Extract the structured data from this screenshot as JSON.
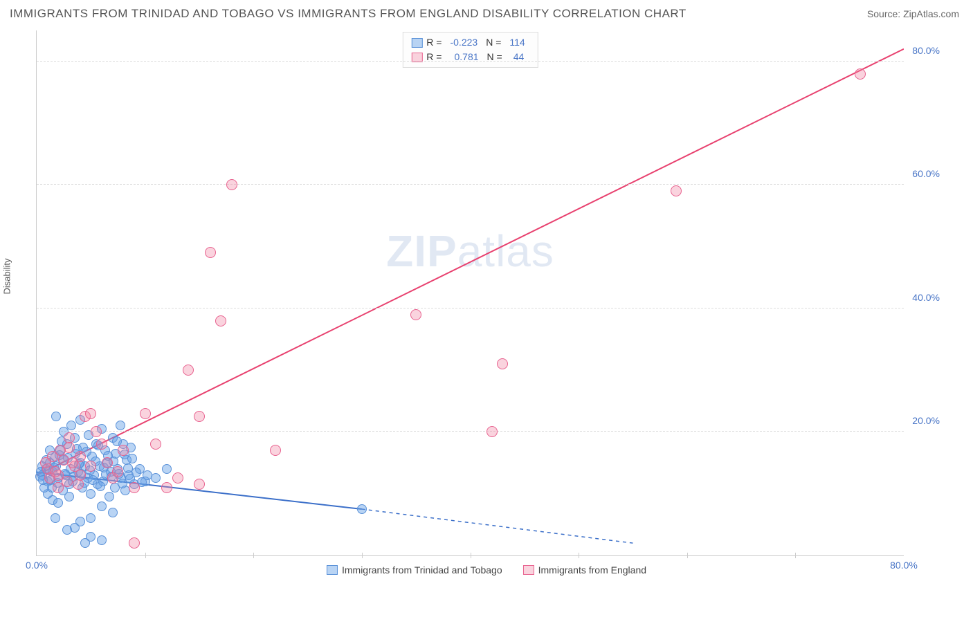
{
  "title": "IMMIGRANTS FROM TRINIDAD AND TOBAGO VS IMMIGRANTS FROM ENGLAND DISABILITY CORRELATION CHART",
  "source": "Source: ZipAtlas.com",
  "ylabel": "Disability",
  "watermark_a": "ZIP",
  "watermark_b": "atlas",
  "chart": {
    "type": "scatter",
    "xlim": [
      0,
      80
    ],
    "ylim": [
      0,
      85
    ],
    "background_color": "#ffffff",
    "grid_color": "#dddddd",
    "xtick_labels": [
      "0.0%",
      "80.0%"
    ],
    "xtick_positions": [
      0,
      80
    ],
    "xtick_minor": [
      10,
      20,
      30,
      40,
      50,
      60,
      70
    ],
    "ytick_labels": [
      "20.0%",
      "40.0%",
      "60.0%",
      "80.0%"
    ],
    "ytick_positions": [
      20,
      40,
      60,
      80
    ],
    "series": [
      {
        "name": "Immigrants from Trinidad and Tobago",
        "color_fill": "rgba(100,160,230,0.45)",
        "color_stroke": "#5a91d8",
        "marker_radius": 7,
        "R": "-0.223",
        "N": "114",
        "trend": {
          "x1": 0,
          "y1": 13.5,
          "x2": 30,
          "y2": 7.5,
          "x2_dash": 55,
          "y2_dash": 2.0,
          "color": "#3b6fc9",
          "width": 2
        },
        "points": [
          [
            0.5,
            13
          ],
          [
            0.8,
            14
          ],
          [
            1,
            12
          ],
          [
            1.2,
            15
          ],
          [
            1.4,
            11
          ],
          [
            1.5,
            13.5
          ],
          [
            1.7,
            16
          ],
          [
            1.8,
            14.5
          ],
          [
            2,
            12.5
          ],
          [
            2.2,
            17
          ],
          [
            2.4,
            10.5
          ],
          [
            2.5,
            15.5
          ],
          [
            2.7,
            13
          ],
          [
            2.8,
            18
          ],
          [
            3,
            11.5
          ],
          [
            3.1,
            14
          ],
          [
            3.3,
            12
          ],
          [
            3.5,
            19
          ],
          [
            3.6,
            16.5
          ],
          [
            3.8,
            13.5
          ],
          [
            4,
            15
          ],
          [
            4.2,
            11
          ],
          [
            4.3,
            17.5
          ],
          [
            4.5,
            14.5
          ],
          [
            4.7,
            12.5
          ],
          [
            4.8,
            19.5
          ],
          [
            5,
            10
          ],
          [
            5.1,
            16
          ],
          [
            5.3,
            13
          ],
          [
            5.5,
            18
          ],
          [
            5.6,
            11.5
          ],
          [
            5.8,
            14.5
          ],
          [
            6,
            20.5
          ],
          [
            6.1,
            12
          ],
          [
            6.3,
            17
          ],
          [
            6.5,
            15
          ],
          [
            6.7,
            9.5
          ],
          [
            6.8,
            13.5
          ],
          [
            7,
            19
          ],
          [
            7.2,
            11
          ],
          [
            7.3,
            16.5
          ],
          [
            7.5,
            14
          ],
          [
            7.7,
            21
          ],
          [
            7.8,
            12.5
          ],
          [
            8,
            18
          ],
          [
            8.2,
            10.5
          ],
          [
            8.3,
            15.5
          ],
          [
            8.5,
            13
          ],
          [
            8.7,
            17.5
          ],
          [
            9,
            11.5
          ],
          [
            9.5,
            14
          ],
          [
            10,
            12
          ],
          [
            1,
            10
          ],
          [
            1.5,
            9
          ],
          [
            2,
            8.5
          ],
          [
            3,
            9.5
          ],
          [
            4,
            5.5
          ],
          [
            5,
            6
          ],
          [
            6,
            8
          ],
          [
            7,
            7
          ],
          [
            2.5,
            20
          ],
          [
            3.2,
            21
          ],
          [
            4,
            22
          ],
          [
            1.8,
            22.5
          ],
          [
            2.3,
            18.5
          ],
          [
            1.2,
            17
          ],
          [
            0.7,
            11
          ],
          [
            0.9,
            15.5
          ],
          [
            1.1,
            13.8
          ],
          [
            1.3,
            12.2
          ],
          [
            1.6,
            14.2
          ],
          [
            1.9,
            11.8
          ],
          [
            2.1,
            16.2
          ],
          [
            2.6,
            13.2
          ],
          [
            2.9,
            15.8
          ],
          [
            3.4,
            12.8
          ],
          [
            3.7,
            17.2
          ],
          [
            3.9,
            14.8
          ],
          [
            4.1,
            13.2
          ],
          [
            4.4,
            11.8
          ],
          [
            4.6,
            16.8
          ],
          [
            4.9,
            13.8
          ],
          [
            5.2,
            12.2
          ],
          [
            5.4,
            15.2
          ],
          [
            5.7,
            17.8
          ],
          [
            5.9,
            11.2
          ],
          [
            6.2,
            14.2
          ],
          [
            6.4,
            13.1
          ],
          [
            6.6,
            16.1
          ],
          [
            6.9,
            12.8
          ],
          [
            7.1,
            15.2
          ],
          [
            7.4,
            18.5
          ],
          [
            7.6,
            13.2
          ],
          [
            7.9,
            11.7
          ],
          [
            8.1,
            16.3
          ],
          [
            8.4,
            14.1
          ],
          [
            8.6,
            12.4
          ],
          [
            8.8,
            15.7
          ],
          [
            9.2,
            13.4
          ],
          [
            9.7,
            11.9
          ],
          [
            10.2,
            13
          ],
          [
            11,
            12.5
          ],
          [
            12,
            14
          ],
          [
            5,
            3
          ],
          [
            6,
            2.5
          ],
          [
            30,
            7.5
          ],
          [
            4.5,
            2
          ],
          [
            3.5,
            4.5
          ],
          [
            2.8,
            4.2
          ],
          [
            1.7,
            6
          ],
          [
            0.5,
            14.5
          ],
          [
            0.3,
            12.8
          ],
          [
            0.4,
            13.6
          ],
          [
            0.6,
            12.2
          ]
        ]
      },
      {
        "name": "Immigrants from England",
        "color_fill": "rgba(240,130,160,0.35)",
        "color_stroke": "#e8628f",
        "marker_radius": 8,
        "R": "0.781",
        "N": "44",
        "trend": {
          "x1": 0,
          "y1": 13,
          "x2": 80,
          "y2": 82,
          "color": "#e8416f",
          "width": 2
        },
        "points": [
          [
            1,
            14
          ],
          [
            1.5,
            16
          ],
          [
            2,
            13
          ],
          [
            2.5,
            15.5
          ],
          [
            3,
            17.5
          ],
          [
            3.5,
            14.5
          ],
          [
            4,
            16
          ],
          [
            4.5,
            22.5
          ],
          [
            5,
            23
          ],
          [
            6,
            18
          ],
          [
            7,
            12.5
          ],
          [
            8,
            17
          ],
          [
            9,
            11
          ],
          [
            10,
            23
          ],
          [
            11,
            18
          ],
          [
            12,
            11
          ],
          [
            13,
            12.5
          ],
          [
            14,
            30
          ],
          [
            15,
            22.5
          ],
          [
            16,
            49
          ],
          [
            17,
            38
          ],
          [
            18,
            60
          ],
          [
            22,
            17
          ],
          [
            35,
            39
          ],
          [
            42,
            20
          ],
          [
            43,
            31
          ],
          [
            59,
            59
          ],
          [
            76,
            78
          ],
          [
            2,
            11
          ],
          [
            3,
            19
          ],
          [
            4,
            13
          ],
          [
            5,
            14.5
          ],
          [
            6.5,
            15
          ],
          [
            7.5,
            13.5
          ],
          [
            1.2,
            12.5
          ],
          [
            0.8,
            15
          ],
          [
            2.2,
            17
          ],
          [
            2.8,
            12
          ],
          [
            3.3,
            15
          ],
          [
            3.8,
            11.5
          ],
          [
            1.7,
            13.5
          ],
          [
            9,
            2
          ],
          [
            15,
            11.5
          ],
          [
            5.5,
            20
          ]
        ]
      }
    ]
  },
  "legend": {
    "R_label": "R =",
    "N_label": "N ="
  }
}
